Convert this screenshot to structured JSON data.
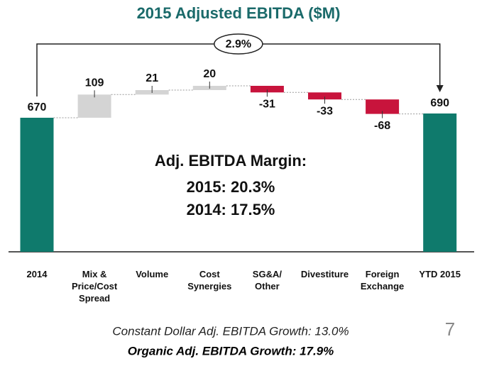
{
  "chart_data": {
    "type": "waterfall",
    "title": "2015 Adjusted EBITDA ($M)",
    "categories": [
      "2014",
      "Mix &\nPrice/Cost\nSpread",
      "Volume",
      "Cost\nSynergies",
      "SG&A/\nOther",
      "Divestiture",
      "Foreign\nExchange",
      "YTD 2015"
    ],
    "values": [
      670,
      109,
      21,
      20,
      -31,
      -33,
      -68,
      690
    ],
    "measure": [
      "absolute",
      "relative",
      "relative",
      "relative",
      "relative",
      "relative",
      "relative",
      "absolute"
    ],
    "colors": {
      "total": "#0f7a6c",
      "increase": "#d4d4d4",
      "decrease": "#c8143c"
    },
    "ylim": [
      40,
      800
    ],
    "annotation": "2.9%",
    "margin_title": "Adj. EBITDA Margin:",
    "margin_lines": [
      "2015: 20.3%",
      "2014: 17.5%"
    ],
    "footnotes": [
      "Constant Dollar Adj. EBITDA Growth: 13.0%",
      "Organic Adj. EBITDA Growth: 17.9%"
    ],
    "page_number": 7
  }
}
